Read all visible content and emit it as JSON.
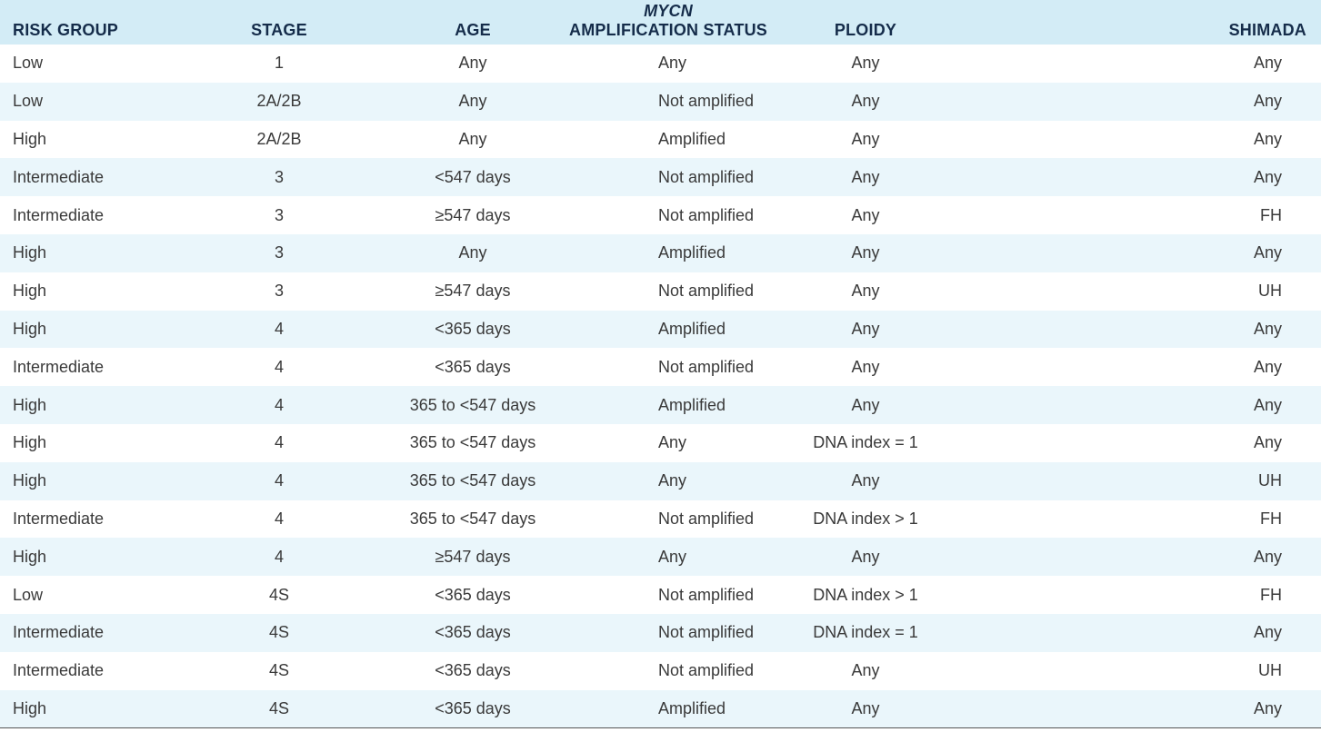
{
  "table": {
    "headers": {
      "risk_group": "RISK GROUP",
      "stage": "STAGE",
      "age": "AGE",
      "mycn_italic": "MYCN",
      "mycn_rest": "AMPLIFICATION STATUS",
      "ploidy": "PLOIDY",
      "shimada": "SHIMADA"
    },
    "rows": [
      {
        "risk": "Low",
        "stage": "1",
        "age": "Any",
        "mycn": "Any",
        "ploidy": "Any",
        "shimada": "Any"
      },
      {
        "risk": "Low",
        "stage": "2A/2B",
        "age": "Any",
        "mycn": "Not amplified",
        "ploidy": "Any",
        "shimada": "Any"
      },
      {
        "risk": "High",
        "stage": "2A/2B",
        "age": "Any",
        "mycn": "Amplified",
        "ploidy": "Any",
        "shimada": "Any"
      },
      {
        "risk": "Intermediate",
        "stage": "3",
        "age": "<547 days",
        "mycn": "Not amplified",
        "ploidy": "Any",
        "shimada": "Any"
      },
      {
        "risk": "Intermediate",
        "stage": "3",
        "age": "≥547 days",
        "mycn": "Not amplified",
        "ploidy": "Any",
        "shimada": "FH"
      },
      {
        "risk": "High",
        "stage": "3",
        "age": "Any",
        "mycn": "Amplified",
        "ploidy": "Any",
        "shimada": "Any"
      },
      {
        "risk": "High",
        "stage": "3",
        "age": "≥547 days",
        "mycn": "Not amplified",
        "ploidy": "Any",
        "shimada": "UH"
      },
      {
        "risk": "High",
        "stage": "4",
        "age": "<365 days",
        "mycn": "Amplified",
        "ploidy": "Any",
        "shimada": "Any"
      },
      {
        "risk": "Intermediate",
        "stage": "4",
        "age": "<365 days",
        "mycn": "Not amplified",
        "ploidy": "Any",
        "shimada": "Any"
      },
      {
        "risk": "High",
        "stage": "4",
        "age": "365 to <547 days",
        "mycn": "Amplified",
        "ploidy": "Any",
        "shimada": "Any"
      },
      {
        "risk": "High",
        "stage": "4",
        "age": "365 to <547 days",
        "mycn": "Any",
        "ploidy": "DNA index = 1",
        "shimada": "Any"
      },
      {
        "risk": "High",
        "stage": "4",
        "age": "365 to <547 days",
        "mycn": "Any",
        "ploidy": "Any",
        "shimada": "UH"
      },
      {
        "risk": "Intermediate",
        "stage": "4",
        "age": "365 to <547 days",
        "mycn": "Not amplified",
        "ploidy": "DNA index > 1",
        "shimada": "FH"
      },
      {
        "risk": "High",
        "stage": "4",
        "age": "≥547 days",
        "mycn": "Any",
        "ploidy": "Any",
        "shimada": "Any"
      },
      {
        "risk": "Low",
        "stage": "4S",
        "age": "<365 days",
        "mycn": "Not amplified",
        "ploidy": "DNA index > 1",
        "shimada": "FH"
      },
      {
        "risk": "Intermediate",
        "stage": "4S",
        "age": "<365 days",
        "mycn": "Not amplified",
        "ploidy": "DNA index = 1",
        "shimada": "Any"
      },
      {
        "risk": "Intermediate",
        "stage": "4S",
        "age": "<365 days",
        "mycn": "Not amplified",
        "ploidy": "Any",
        "shimada": "UH"
      },
      {
        "risk": "High",
        "stage": "4S",
        "age": "<365 days",
        "mycn": "Amplified",
        "ploidy": "Any",
        "shimada": "Any"
      }
    ]
  }
}
